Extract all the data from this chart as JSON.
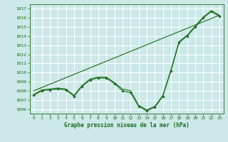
{
  "title": "Graphe pression niveau de la mer (hPa)",
  "bg_color": "#cce8e8",
  "grid_color": "#ffffff",
  "line_color": "#1a6b1a",
  "marker_color": "#1a6b1a",
  "x_min": -0.5,
  "x_max": 23.5,
  "y_min": 1005.5,
  "y_max": 1017.5,
  "y_ticks": [
    1006,
    1007,
    1008,
    1009,
    1010,
    1011,
    1012,
    1013,
    1014,
    1015,
    1016,
    1017
  ],
  "x_ticks": [
    0,
    1,
    2,
    3,
    4,
    5,
    6,
    7,
    8,
    9,
    10,
    11,
    12,
    13,
    14,
    15,
    16,
    17,
    18,
    19,
    20,
    21,
    22,
    23
  ],
  "series_curved1": {
    "x": [
      0,
      1,
      2,
      3,
      4,
      5,
      6,
      7,
      8,
      9,
      10,
      11,
      12,
      13,
      14,
      15,
      16,
      17,
      18,
      19,
      20,
      21,
      22,
      23
    ],
    "y": [
      1007.5,
      1008.0,
      1008.1,
      1008.2,
      1008.1,
      1007.4,
      1008.5,
      1009.2,
      1009.4,
      1009.4,
      1008.8,
      1008.0,
      1007.8,
      1006.3,
      1005.8,
      1006.2,
      1007.4,
      1010.2,
      1013.3,
      1014.0,
      1015.0,
      1016.0,
      1016.7,
      1016.2
    ]
  },
  "series_curved2": {
    "x": [
      0,
      1,
      2,
      3,
      4,
      5,
      6,
      7,
      8,
      9,
      10,
      11,
      12,
      13,
      14,
      15,
      16,
      17,
      18,
      19,
      20,
      21,
      22,
      23
    ],
    "y": [
      1007.6,
      1008.1,
      1008.2,
      1008.3,
      1008.2,
      1007.5,
      1008.6,
      1009.3,
      1009.5,
      1009.5,
      1008.9,
      1008.2,
      1008.0,
      1006.4,
      1005.9,
      1006.3,
      1007.5,
      1010.3,
      1013.4,
      1014.1,
      1015.1,
      1016.1,
      1016.8,
      1016.3
    ]
  },
  "series_straight": {
    "x": [
      0,
      23
    ],
    "y": [
      1008.0,
      1016.3
    ]
  }
}
